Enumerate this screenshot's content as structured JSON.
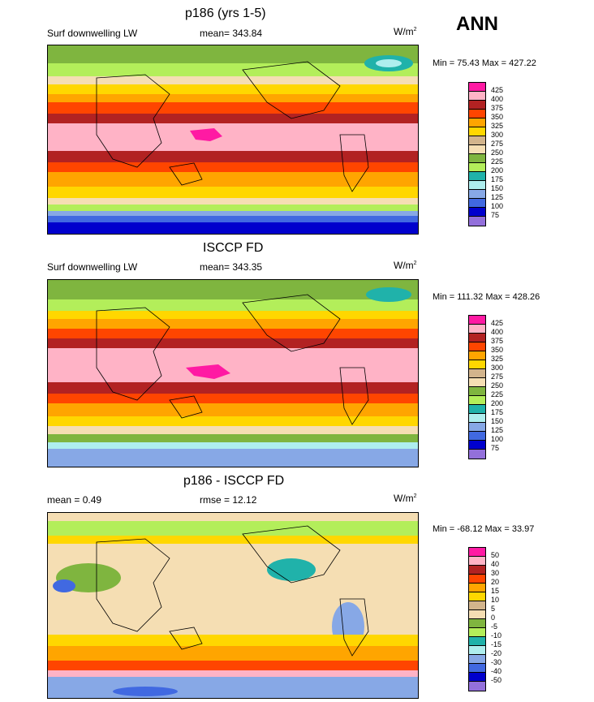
{
  "season": "ANN",
  "units_base": "W/m",
  "units_sup": "2",
  "panels": [
    {
      "title": "p186 (yrs 1-5)",
      "left_label": "Surf downwelling LW",
      "center_label": "mean= 343.84",
      "minmax": "Min =  75.43 Max = 427.22",
      "levels": [
        "425",
        "400",
        "375",
        "350",
        "325",
        "300",
        "275",
        "250",
        "225",
        "200",
        "175",
        "150",
        "125",
        "100",
        "75"
      ]
    },
    {
      "title": "ISCCP FD",
      "left_label": "Surf downwelling LW",
      "center_label": "mean= 343.35",
      "minmax": "Min = 111.32 Max = 428.26",
      "levels": [
        "425",
        "400",
        "375",
        "350",
        "325",
        "300",
        "275",
        "250",
        "225",
        "200",
        "175",
        "150",
        "125",
        "100",
        "75"
      ]
    },
    {
      "title": "p186 - ISCCP FD",
      "left_label": "mean =   0.49",
      "center_label": "rmse =  12.12",
      "minmax": "Min = -68.12 Max =  33.97",
      "levels": [
        "50",
        "40",
        "30",
        "20",
        "15",
        "10",
        "5",
        "0",
        "-5",
        "-10",
        "-15",
        "-20",
        "-30",
        "-40",
        "-50"
      ]
    }
  ],
  "colors": {
    "levels": [
      "#ff1aa3",
      "#ffb3c6",
      "#b22222",
      "#ff4500",
      "#ffa500",
      "#ffd700",
      "#d2b48c",
      "#f5deb3",
      "#7fb53f",
      "#b3ee5a",
      "#20b2aa",
      "#aeeeee",
      "#87a8e6",
      "#4169e1",
      "#0000cd",
      "#9370db"
    ]
  }
}
